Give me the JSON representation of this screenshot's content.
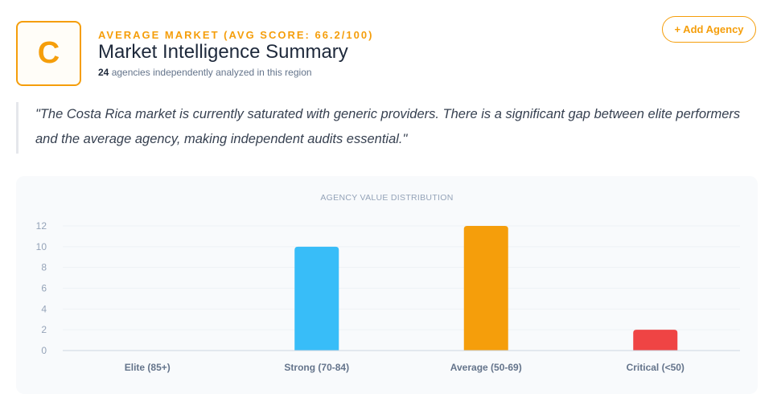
{
  "header": {
    "grade": "C",
    "kicker": "AVERAGE MARKET (AVG SCORE: 66.2/100)",
    "title": "Market Intelligence Summary",
    "agency_count": "24",
    "agency_text": " agencies independently analyzed in this region",
    "add_button_label": "+ Add Agency"
  },
  "quote": "\"The Costa Rica market is currently saturated with generic providers. There is a significant gap between elite performers and the average agency, making independent audits essential.\"",
  "colors": {
    "accent": "#f59e0b",
    "strong": "#38bdf8",
    "average": "#f59e0b",
    "critical": "#ef4444"
  },
  "chart_data": {
    "type": "bar",
    "title": "AGENCY VALUE DISTRIBUTION",
    "categories": [
      "Elite (85+)",
      "Strong (70-84)",
      "Average (50-69)",
      "Critical (<50)"
    ],
    "values": [
      0,
      10,
      12,
      2
    ],
    "colors": [
      "#22c55e",
      "#38bdf8",
      "#f59e0b",
      "#ef4444"
    ],
    "ylim": [
      0,
      12
    ],
    "yticks": [
      0,
      2,
      4,
      6,
      8,
      10,
      12
    ],
    "grid": true,
    "legend": "none"
  }
}
